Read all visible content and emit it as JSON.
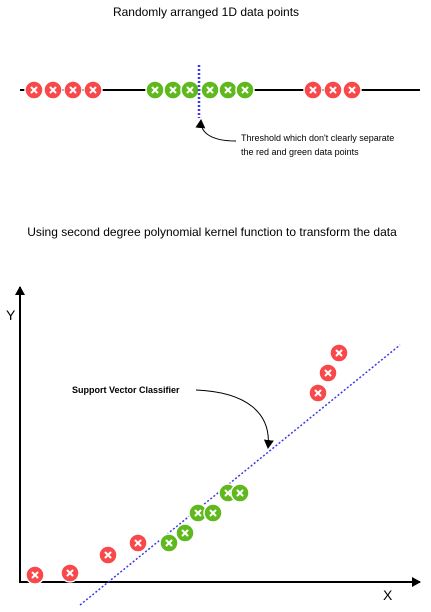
{
  "top": {
    "title": "Randomly arranged 1D data points",
    "annotation": [
      "Threshold which don't clearly separate",
      "the red and green data points"
    ]
  },
  "bottom": {
    "title": "Using second degree polynomial kernel function to transform the data",
    "y_label": "Y",
    "x_label": "X",
    "annotation": "Support Vector Classifier"
  }
}
